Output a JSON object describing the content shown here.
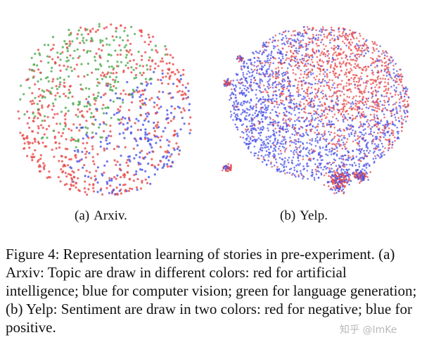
{
  "figure": {
    "subfigures": [
      {
        "tag": "(a)",
        "label": "Arxiv."
      },
      {
        "tag": "(b)",
        "label": "Yelp."
      }
    ],
    "caption": "Figure 4: Representation learning of stories in pre-experiment. (a) Arxiv: Topic are draw in different colors: red for artificial intelligence; blue for computer vision; green for language generation; (b) Yelp: Sentiment are draw in two colors: red for negative; blue for positive.",
    "colors": {
      "red": "#e84a4a",
      "blue": "#4a52e8",
      "green": "#4caa4c"
    }
  },
  "watermark": "知乎 @ImKe"
}
